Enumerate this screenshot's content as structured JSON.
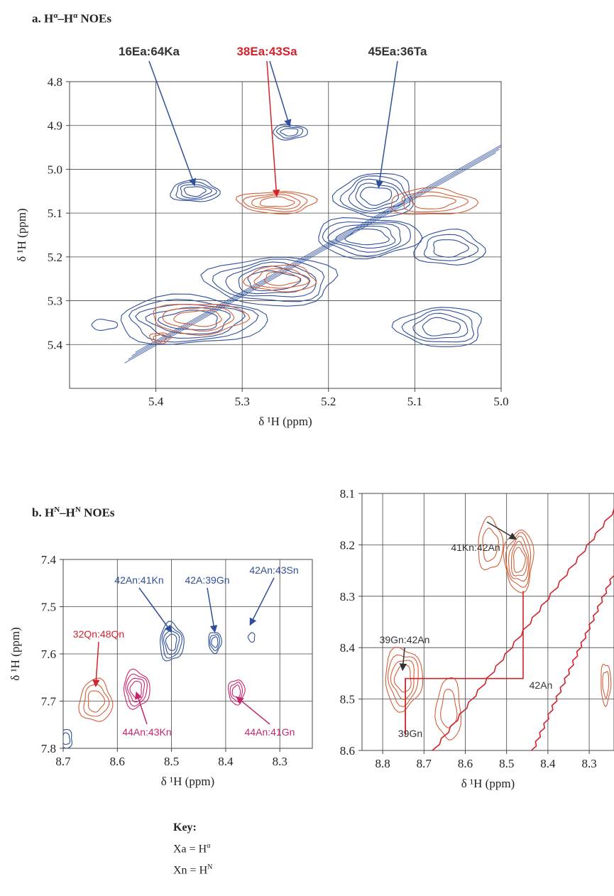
{
  "panel_a": {
    "title_prefix": "a. H",
    "title_sup1": "α",
    "title_mid": "–H",
    "title_sup2": "α",
    "title_suffix": " NOEs"
  },
  "panel_b": {
    "title_prefix": "b. H",
    "title_sup1": "N",
    "title_mid": "–H",
    "title_sup2": "N",
    "title_suffix": " NOEs"
  },
  "key": {
    "title": "Key:",
    "line1_prefix": "Xa = H",
    "line1_sup": "α",
    "line2_prefix": "Xn = H",
    "line2_sup": "N"
  },
  "colors": {
    "blue": "#2f4f9a",
    "orange": "#d2603a",
    "red": "#d2232a",
    "magenta": "#c8246e",
    "dark": "#333333",
    "grid": "#444444"
  },
  "chart_data": [
    {
      "id": "a",
      "type": "scatter",
      "subtype": "2D NMR contour spectrum",
      "xlabel": "δ ¹H (ppm)",
      "ylabel": "δ ¹H (ppm)",
      "xlim": [
        5.5,
        5.0
      ],
      "ylim": [
        4.8,
        5.5
      ],
      "x_ticks": [
        5.4,
        5.3,
        5.2,
        5.1,
        5.0
      ],
      "x_tick_labels": [
        "5.4",
        "5.3",
        "5.2",
        "5.1",
        "5.0"
      ],
      "y_ticks": [
        4.8,
        4.9,
        5.0,
        5.1,
        5.2,
        5.3,
        5.4
      ],
      "y_tick_labels": [
        "4.8",
        "4.9",
        "5.0",
        "5.1",
        "5.2",
        "5.3",
        "5.4"
      ],
      "grid": true,
      "peaks": [
        {
          "x": 5.355,
          "y": 5.05,
          "rx": 0.028,
          "ry": 0.025,
          "color": "blue",
          "levels": 4
        },
        {
          "x": 5.245,
          "y": 4.915,
          "rx": 0.02,
          "ry": 0.017,
          "color": "blue",
          "levels": 3
        },
        {
          "x": 5.26,
          "y": 5.075,
          "rx": 0.045,
          "ry": 0.025,
          "color": "orange",
          "levels": 4
        },
        {
          "x": 5.145,
          "y": 5.06,
          "rx": 0.045,
          "ry": 0.05,
          "color": "blue",
          "levels": 5
        },
        {
          "x": 5.08,
          "y": 5.075,
          "rx": 0.05,
          "ry": 0.03,
          "color": "orange",
          "levels": 3
        },
        {
          "x": 5.155,
          "y": 5.155,
          "rx": 0.06,
          "ry": 0.045,
          "color": "blue",
          "levels": 5
        },
        {
          "x": 5.265,
          "y": 5.255,
          "rx": 0.075,
          "ry": 0.055,
          "color": "blue",
          "levels": 5
        },
        {
          "x": 5.255,
          "y": 5.25,
          "rx": 0.04,
          "ry": 0.03,
          "color": "orange",
          "levels": 3
        },
        {
          "x": 5.36,
          "y": 5.345,
          "rx": 0.085,
          "ry": 0.055,
          "color": "blue",
          "levels": 5
        },
        {
          "x": 5.35,
          "y": 5.34,
          "rx": 0.055,
          "ry": 0.035,
          "color": "orange",
          "levels": 3
        },
        {
          "x": 5.07,
          "y": 5.36,
          "rx": 0.05,
          "ry": 0.045,
          "color": "blue",
          "levels": 4
        },
        {
          "x": 5.06,
          "y": 5.18,
          "rx": 0.04,
          "ry": 0.04,
          "color": "blue",
          "levels": 3
        },
        {
          "x": 5.46,
          "y": 5.355,
          "rx": 0.015,
          "ry": 0.012,
          "color": "blue",
          "levels": 1
        },
        {
          "x": 5.395,
          "y": 5.385,
          "rx": 0.012,
          "ry": 0.012,
          "color": "orange",
          "levels": 2
        }
      ],
      "diagonal": {
        "from": [
          5.43,
          5.43
        ],
        "to": [
          5.0,
          4.95
        ],
        "color": "blue"
      },
      "annotations": [
        {
          "label": "16Ea:64Ka",
          "color": "dark",
          "text_x": 5.4,
          "text_y": 4.74,
          "targets": [
            [
              5.355,
              5.05
            ]
          ],
          "arrow_color": "blue"
        },
        {
          "label": "38Ea:43Sa",
          "color": "red",
          "text_x": 5.275,
          "text_y": 4.74,
          "targets": [
            [
              5.26,
              5.075
            ],
            [
              5.245,
              4.915
            ]
          ],
          "arrow_color": "red_blue"
        },
        {
          "label": "45Ea:36Ta",
          "color": "dark",
          "text_x": 5.16,
          "text_y": 4.74,
          "targets": [
            [
              5.142,
              5.055
            ]
          ],
          "arrow_color": "blue"
        }
      ]
    },
    {
      "id": "b_left",
      "type": "scatter",
      "subtype": "2D NMR contour spectrum",
      "xlabel": "δ ¹H (ppm)",
      "ylabel": "δ ¹H (ppm)",
      "xlim": [
        8.7,
        8.24
      ],
      "ylim": [
        7.4,
        7.8
      ],
      "x_ticks": [
        8.7,
        8.6,
        8.5,
        8.4,
        8.3
      ],
      "x_tick_labels": [
        "8.7",
        "8.6",
        "8.5",
        "8.4",
        "8.3"
      ],
      "y_ticks": [
        7.4,
        7.5,
        7.6,
        7.7,
        7.8
      ],
      "y_tick_labels": [
        "7.4",
        "7.5",
        "7.6",
        "7.7",
        "7.8"
      ],
      "grid": true,
      "peaks": [
        {
          "x": 8.5,
          "y": 7.575,
          "rx": 0.022,
          "ry": 0.04,
          "color": "blue",
          "levels": 4
        },
        {
          "x": 8.42,
          "y": 7.575,
          "rx": 0.012,
          "ry": 0.022,
          "color": "blue",
          "levels": 3
        },
        {
          "x": 8.352,
          "y": 7.565,
          "rx": 0.006,
          "ry": 0.01,
          "color": "blue",
          "levels": 1
        },
        {
          "x": 8.64,
          "y": 7.7,
          "rx": 0.03,
          "ry": 0.045,
          "color": "orange",
          "levels": 3
        },
        {
          "x": 8.565,
          "y": 7.675,
          "rx": 0.024,
          "ry": 0.04,
          "color": "magenta",
          "levels": 4
        },
        {
          "x": 8.38,
          "y": 7.68,
          "rx": 0.015,
          "ry": 0.026,
          "color": "magenta",
          "levels": 3
        },
        {
          "x": 8.695,
          "y": 7.78,
          "rx": 0.012,
          "ry": 0.02,
          "color": "blue",
          "levels": 2
        }
      ],
      "annotations": [
        {
          "label": "42An:41Kn",
          "color": "blue",
          "targets": [
            [
              8.5,
              7.575
            ]
          ]
        },
        {
          "label": "42A:39Gn",
          "color": "blue",
          "targets": [
            [
              8.42,
              7.575
            ]
          ]
        },
        {
          "label": "42An:43Sn",
          "color": "blue",
          "targets": [
            [
              8.355,
              7.56
            ]
          ]
        },
        {
          "label": "32Qn:48Qn",
          "color": "red",
          "targets": [
            [
              8.64,
              7.69
            ]
          ]
        },
        {
          "label": "44An:43Kn",
          "color": "magenta",
          "targets": [
            [
              8.565,
              7.66
            ]
          ]
        },
        {
          "label": "44An:41Gn",
          "color": "magenta",
          "targets": [
            [
              8.38,
              7.67
            ]
          ]
        }
      ]
    },
    {
      "id": "b_right",
      "type": "scatter",
      "subtype": "2D NMR contour spectrum",
      "xlabel": "δ ¹H (ppm)",
      "ylabel": "",
      "xlim": [
        8.85,
        8.24
      ],
      "ylim": [
        8.1,
        8.6
      ],
      "x_ticks": [
        8.8,
        8.7,
        8.6,
        8.5,
        8.4,
        8.3
      ],
      "x_tick_labels": [
        "8.8",
        "8.7",
        "8.6",
        "8.5",
        "8.4",
        "8.3"
      ],
      "y_ticks": [
        8.1,
        8.2,
        8.3,
        8.4,
        8.5,
        8.6
      ],
      "y_tick_labels": [
        "8.1",
        "8.2",
        "8.3",
        "8.4",
        "8.5",
        "8.6"
      ],
      "grid": true,
      "peaks": [
        {
          "x": 8.75,
          "y": 8.46,
          "rx": 0.045,
          "ry": 0.06,
          "color": "orange",
          "levels": 4
        },
        {
          "x": 8.47,
          "y": 8.23,
          "rx": 0.035,
          "ry": 0.06,
          "color": "orange",
          "levels": 5
        },
        {
          "x": 8.64,
          "y": 8.52,
          "rx": 0.03,
          "ry": 0.06,
          "color": "orange",
          "levels": 2
        },
        {
          "x": 8.54,
          "y": 8.2,
          "rx": 0.03,
          "ry": 0.05,
          "color": "orange",
          "levels": 2
        },
        {
          "x": 8.26,
          "y": 8.47,
          "rx": 0.012,
          "ry": 0.04,
          "color": "orange",
          "levels": 2
        }
      ],
      "annotations": [
        {
          "label": "41Kn:42An",
          "color": "dark",
          "targets": [
            [
              8.47,
              8.2
            ]
          ]
        },
        {
          "label": "39Gn:42An",
          "color": "dark",
          "targets": [
            [
              8.745,
              8.455
            ]
          ]
        },
        {
          "label": "42An",
          "color": "dark",
          "targets": []
        },
        {
          "label": "39Gn",
          "color": "dark",
          "targets": []
        }
      ]
    }
  ]
}
